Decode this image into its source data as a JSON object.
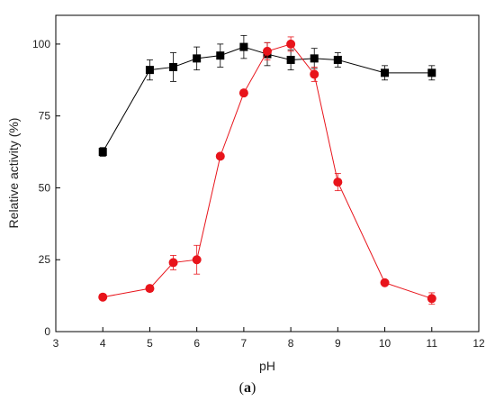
{
  "chart_data": {
    "type": "line",
    "title": "",
    "xlabel": "pH",
    "ylabel": "Relative activity (%)",
    "xlim": [
      3,
      12
    ],
    "ylim": [
      0,
      110
    ],
    "xticks": [
      3,
      4,
      5,
      6,
      7,
      8,
      9,
      10,
      11,
      12
    ],
    "yticks": [
      0,
      25,
      50,
      75,
      100
    ],
    "grid": false,
    "legend": "none",
    "series": [
      {
        "marker": "square",
        "color": "#000000",
        "x": [
          4,
          5,
          5.5,
          6,
          6.5,
          7,
          7.5,
          8,
          8.5,
          9,
          10,
          11
        ],
        "y": [
          62.5,
          91,
          92,
          95,
          96,
          99,
          96.5,
          94.5,
          95,
          94.5,
          90,
          90
        ],
        "err": [
          1.5,
          3.5,
          5,
          4,
          4,
          4,
          4,
          3.5,
          3.5,
          2.5,
          2.5,
          2.5
        ]
      },
      {
        "marker": "circle",
        "color": "#e8141b",
        "x": [
          4,
          5,
          5.5,
          6,
          6.5,
          7,
          7.5,
          8,
          8.5,
          9,
          10,
          11
        ],
        "y": [
          12,
          15,
          24,
          25,
          61,
          83,
          97.5,
          100,
          89.5,
          52,
          17,
          11.5
        ],
        "err": [
          0.8,
          1,
          2.5,
          5,
          1,
          1,
          3,
          2.5,
          2.5,
          3,
          1,
          2
        ]
      }
    ]
  },
  "caption": {
    "open": "(",
    "letter": "a",
    "close": ")"
  }
}
